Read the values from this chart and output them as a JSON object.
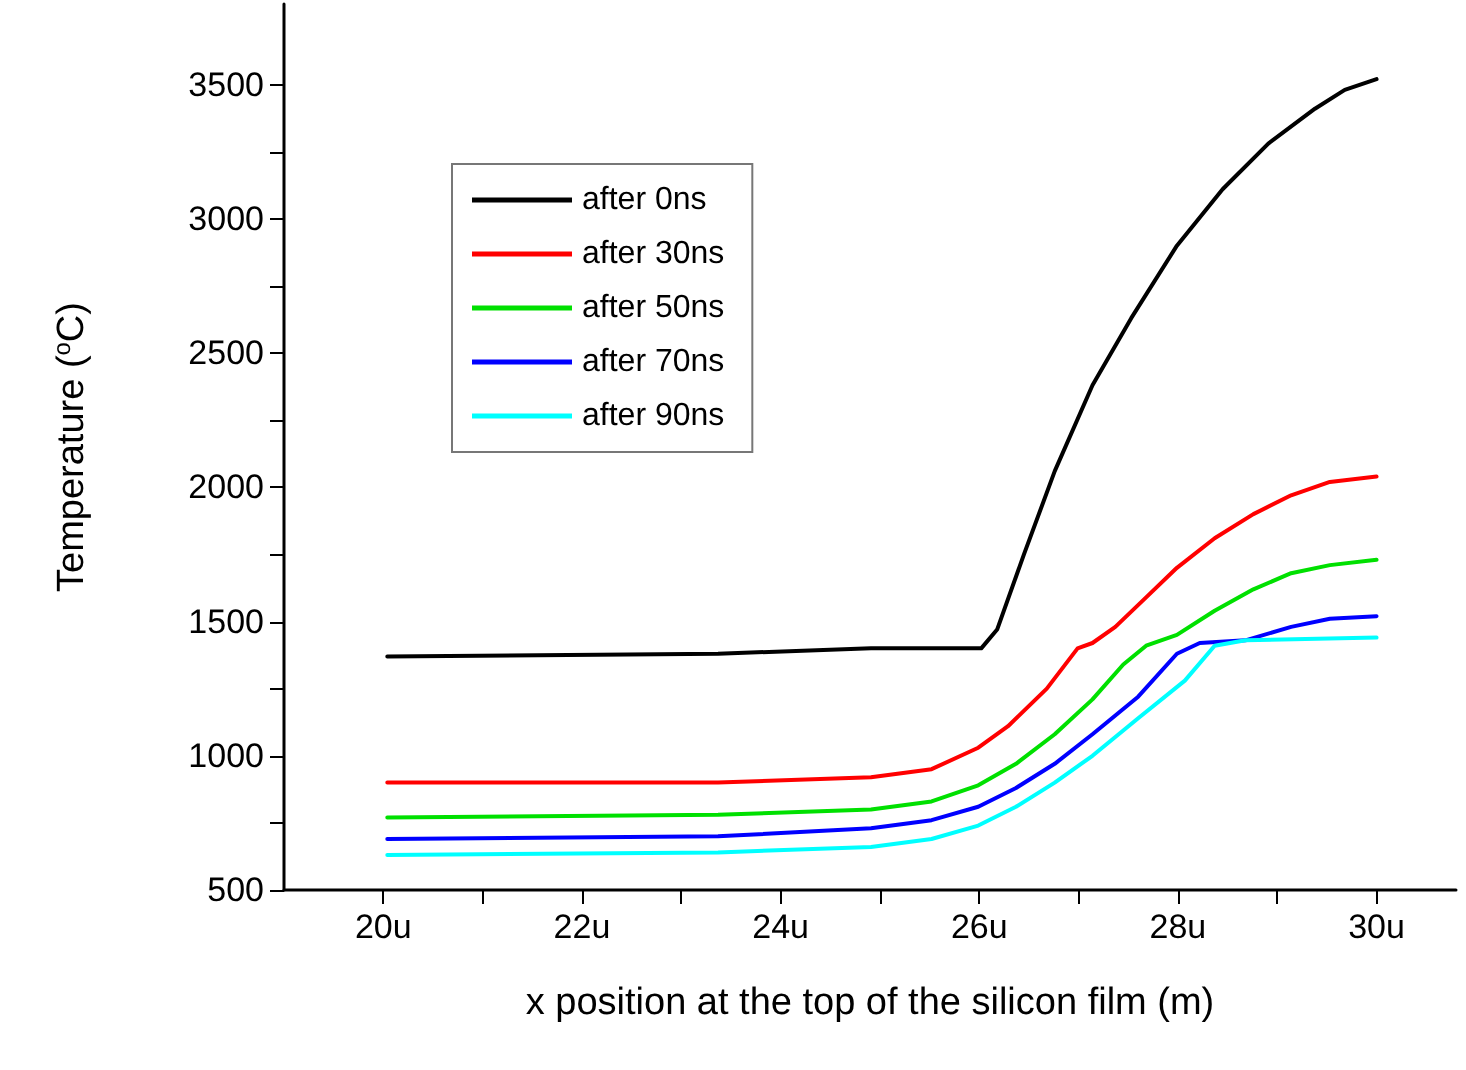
{
  "chart_data": {
    "type": "line",
    "xlabel": "x position at the top of the silicon film (m)",
    "ylabel": "Temperature ($^{o}$C)",
    "xlim": [
      19,
      30.8
    ],
    "ylim": [
      500,
      3800
    ],
    "xticks": [
      {
        "value": 20,
        "label": "20u"
      },
      {
        "value": 21,
        "label": null
      },
      {
        "value": 22,
        "label": "22u"
      },
      {
        "value": 23,
        "label": null
      },
      {
        "value": 24,
        "label": "24u"
      },
      {
        "value": 25,
        "label": null
      },
      {
        "value": 26,
        "label": "26u"
      },
      {
        "value": 27,
        "label": null
      },
      {
        "value": 28,
        "label": "28u"
      },
      {
        "value": 29,
        "label": null
      },
      {
        "value": 30,
        "label": "30u"
      }
    ],
    "yticks": [
      500,
      {
        "value": 750,
        "label": null
      },
      1000,
      {
        "value": 1250,
        "label": null
      },
      1500,
      {
        "value": 1750,
        "label": null
      },
      2000,
      {
        "value": 2250,
        "label": null
      },
      2500,
      {
        "value": 2750,
        "label": null
      },
      3000,
      {
        "value": 3250,
        "label": null
      },
      3500
    ],
    "grid": false,
    "legend": "top left",
    "marker": "none",
    "line_style": "solid",
    "series": [
      {
        "name": "after 0ns",
        "color": "#000000",
        "x": [
          20.04,
          23.37,
          24.91,
          26.02,
          26.18,
          26.45,
          26.76,
          27.14,
          27.53,
          27.99,
          28.45,
          28.91,
          29.38,
          29.68,
          30.0
        ],
        "values": [
          1370,
          1380,
          1400,
          1400,
          1470,
          1750,
          2060,
          2380,
          2630,
          2900,
          3110,
          3280,
          3410,
          3480,
          3520
        ]
      },
      {
        "name": "after 30ns",
        "color": "#ff0000",
        "x": [
          20.04,
          23.37,
          24.91,
          25.52,
          25.99,
          26.29,
          26.68,
          26.99,
          27.14,
          27.37,
          27.68,
          27.99,
          28.37,
          28.76,
          29.14,
          29.53,
          30.0
        ],
        "values": [
          900,
          900,
          920,
          950,
          1030,
          1110,
          1250,
          1400,
          1420,
          1480,
          1590,
          1700,
          1810,
          1900,
          1970,
          2020,
          2040
        ]
      },
      {
        "name": "after 50ns",
        "color": "#00e000",
        "x": [
          20.04,
          23.37,
          24.91,
          25.52,
          25.99,
          26.37,
          26.76,
          27.14,
          27.45,
          27.68,
          27.99,
          28.37,
          28.76,
          29.14,
          29.53,
          30.0
        ],
        "values": [
          770,
          780,
          800,
          830,
          890,
          970,
          1080,
          1210,
          1340,
          1410,
          1450,
          1540,
          1620,
          1680,
          1710,
          1730
        ]
      },
      {
        "name": "after 70ns",
        "color": "#0000ff",
        "x": [
          20.04,
          23.37,
          24.91,
          25.52,
          25.99,
          26.37,
          26.76,
          27.14,
          27.6,
          27.99,
          28.22,
          28.68,
          29.14,
          29.53,
          30.0
        ],
        "values": [
          690,
          700,
          730,
          760,
          810,
          880,
          970,
          1080,
          1220,
          1380,
          1420,
          1430,
          1480,
          1510,
          1520
        ]
      },
      {
        "name": "after 90ns",
        "color": "#00ffff",
        "x": [
          20.04,
          23.37,
          24.91,
          25.52,
          25.99,
          26.37,
          26.76,
          27.14,
          27.6,
          28.07,
          28.37,
          28.68,
          30.0
        ],
        "values": [
          630,
          640,
          660,
          690,
          740,
          810,
          900,
          1000,
          1140,
          1280,
          1410,
          1430,
          1440
        ]
      }
    ]
  }
}
